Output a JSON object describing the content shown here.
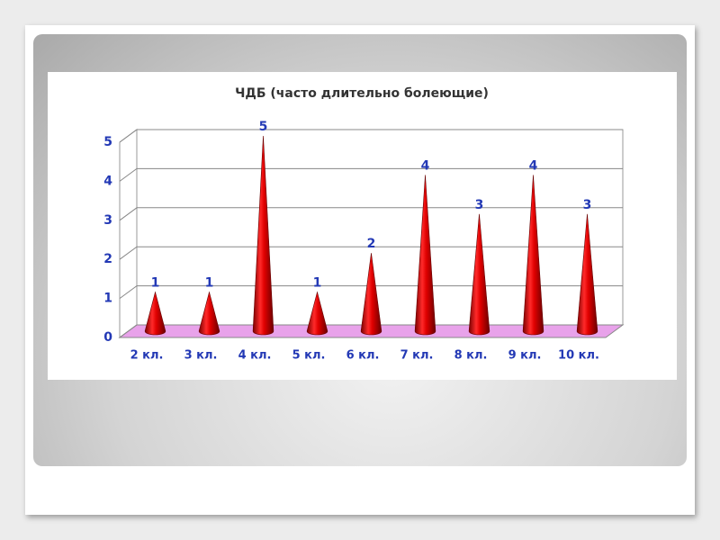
{
  "chart_data": {
    "type": "bar",
    "title": "ЧДБ (часто длительно болеющие)",
    "categories": [
      "2 кл.",
      "3 кл.",
      "4 кл.",
      "5 кл.",
      "6 кл.",
      "7 кл.",
      "8 кл.",
      "9 кл.",
      "10 кл."
    ],
    "values": [
      1,
      1,
      5,
      1,
      2,
      4,
      3,
      4,
      3
    ],
    "color": "#e00000",
    "ylim": [
      0,
      5
    ],
    "yticks": [
      0,
      1,
      2,
      3,
      4,
      5
    ],
    "grid": true
  }
}
